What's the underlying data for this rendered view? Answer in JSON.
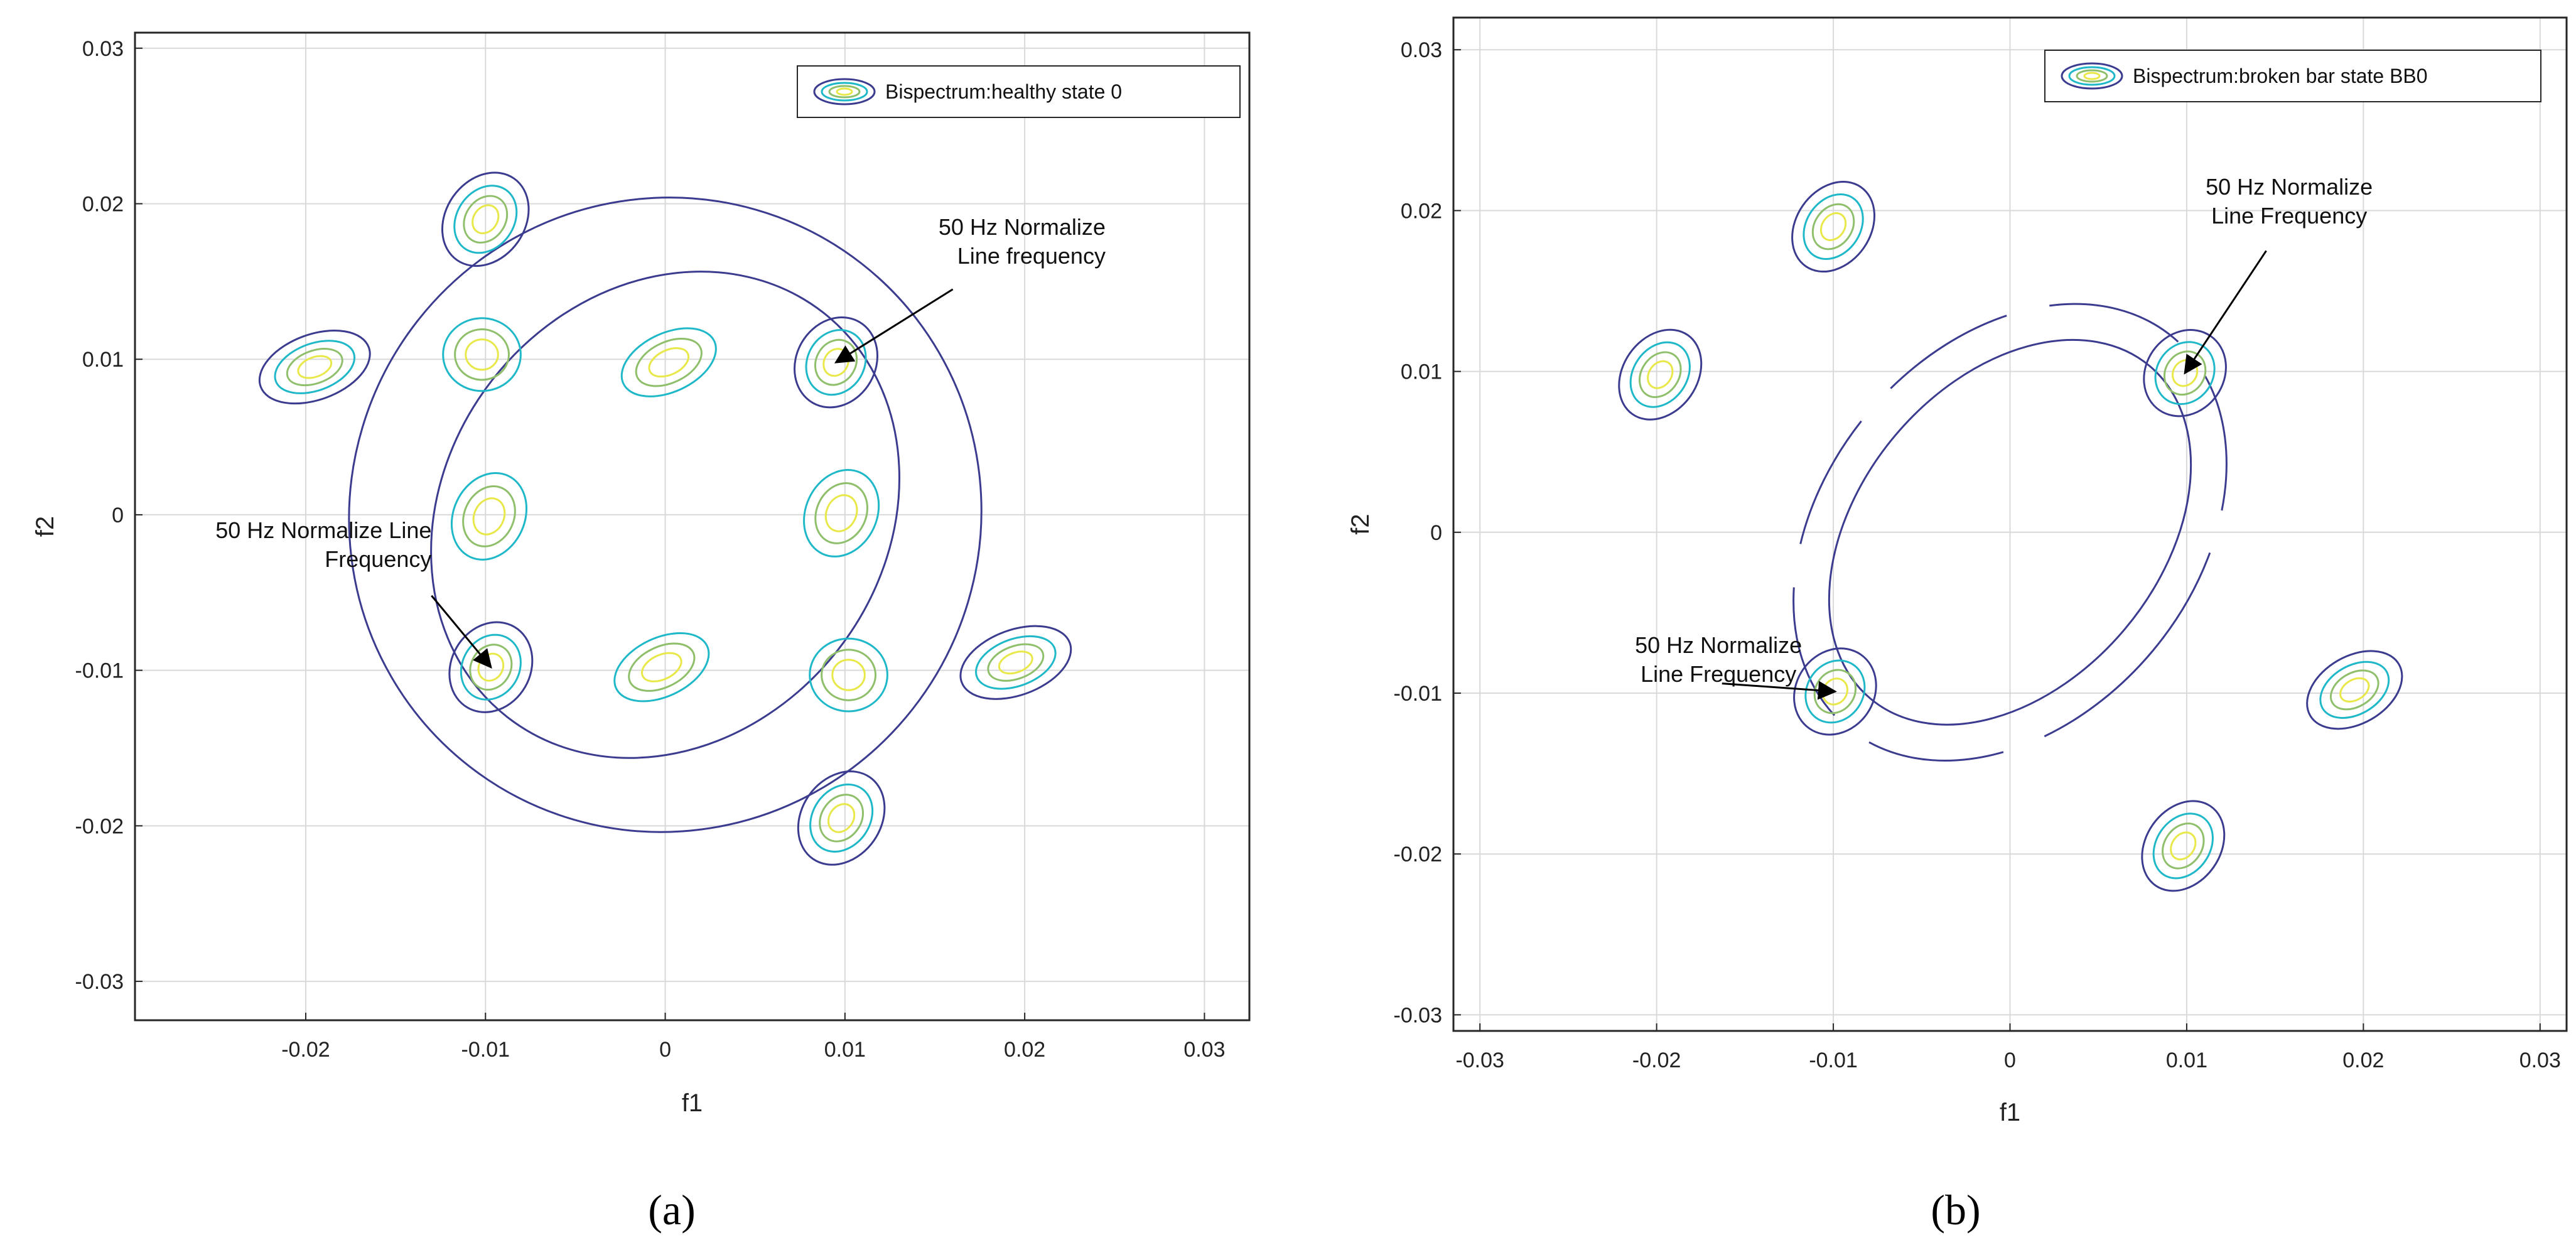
{
  "chart_data": [
    {
      "id": "a",
      "type": "contour",
      "panel_label": "(a)",
      "legend": "Bispectrum:healthy state 0",
      "xlabel": "f1",
      "ylabel": "f2",
      "xlim": [
        -0.0295,
        0.0325
      ],
      "ylim": [
        -0.0325,
        0.031
      ],
      "xticks": [
        -0.02,
        -0.01,
        0,
        0.01,
        0.02,
        0.03
      ],
      "xtick_labels": [
        "-0.02",
        "-0.01",
        "0",
        "0.01",
        "0.02",
        "0.03"
      ],
      "yticks": [
        -0.03,
        -0.02,
        -0.01,
        0,
        0.01,
        0.02,
        0.03
      ],
      "ytick_labels": [
        "-0.03",
        "-0.02",
        "-0.01",
        "0",
        "0.01",
        "0.02",
        "0.03"
      ],
      "contour_colors": [
        "#3b3b8f",
        "#1fb8c9",
        "#8fbf6a",
        "#e8e84a"
      ],
      "peaks": [
        {
          "f1": -0.01,
          "f2": 0.019,
          "rx": 0.0022,
          "ry": 0.0032,
          "rot": 35
        },
        {
          "f1": -0.0195,
          "f2": 0.0095,
          "rx": 0.0032,
          "ry": 0.0021,
          "rot": -20
        },
        {
          "f1": 0.0095,
          "f2": 0.0098,
          "rx": 0.0022,
          "ry": 0.003,
          "rot": 30
        },
        {
          "f1": -0.0097,
          "f2": -0.0098,
          "rx": 0.0022,
          "ry": 0.003,
          "rot": 30
        },
        {
          "f1": 0.0195,
          "f2": -0.0095,
          "rx": 0.0032,
          "ry": 0.0021,
          "rot": -20
        },
        {
          "f1": 0.0098,
          "f2": -0.0195,
          "rx": 0.0022,
          "ry": 0.0032,
          "rot": 35
        }
      ],
      "secondary": [
        {
          "f1": -0.0102,
          "f2": 0.0103,
          "rx": 0.0024,
          "ry": 0.0026,
          "rot": 0
        },
        {
          "f1": 0.0002,
          "f2": 0.0098,
          "rx": 0.0031,
          "ry": 0.0021,
          "rot": -25
        },
        {
          "f1": -0.0098,
          "f2": -0.0001,
          "rx": 0.0022,
          "ry": 0.0032,
          "rot": 25
        },
        {
          "f1": 0.0098,
          "f2": 0.0001,
          "rx": 0.0022,
          "ry": 0.0032,
          "rot": 25
        },
        {
          "f1": -0.0002,
          "f2": -0.0098,
          "rx": 0.0031,
          "ry": 0.0021,
          "rot": -25
        },
        {
          "f1": 0.0102,
          "f2": -0.0103,
          "rx": 0.0024,
          "ry": 0.0026,
          "rot": 0
        }
      ],
      "annotations": [
        {
          "lines": [
            "50 Hz  Normalize",
            "Line frequency"
          ],
          "f1": 0.0245,
          "f2": 0.018,
          "anchor": "end",
          "target": [
            0.0095,
            0.0098
          ],
          "from": [
            0.016,
            0.0145
          ]
        },
        {
          "lines": [
            "50 Hz Normalize Line",
            "Frequency"
          ],
          "f1": -0.013,
          "f2": -0.0015,
          "anchor": "end",
          "target": [
            -0.0097,
            -0.0098
          ],
          "from": [
            -0.013,
            -0.0052
          ]
        }
      ]
    },
    {
      "id": "b",
      "type": "contour",
      "panel_label": "(b)",
      "legend": "Bispectrum:broken bar state BB0",
      "xlabel": "f1",
      "ylabel": "f2",
      "xlim": [
        -0.0315,
        0.0315
      ],
      "ylim": [
        -0.031,
        0.032
      ],
      "xticks": [
        -0.03,
        -0.02,
        -0.01,
        0,
        0.01,
        0.02,
        0.03
      ],
      "xtick_labels": [
        "-0.03",
        "-0.02",
        "-0.01",
        "0",
        "0.01",
        "0.02",
        "0.03"
      ],
      "yticks": [
        -0.03,
        -0.02,
        -0.01,
        0,
        0.01,
        0.02,
        0.03
      ],
      "ytick_labels": [
        "-0.03",
        "-0.02",
        "-0.01",
        "0",
        "0.01",
        "0.02",
        "0.03"
      ],
      "contour_colors": [
        "#3b3b8f",
        "#1fb8c9",
        "#8fbf6a",
        "#e8e84a"
      ],
      "peaks": [
        {
          "f1": -0.01,
          "f2": 0.019,
          "rx": 0.0021,
          "ry": 0.003,
          "rot": 35
        },
        {
          "f1": -0.0198,
          "f2": 0.0098,
          "rx": 0.0021,
          "ry": 0.003,
          "rot": 35
        },
        {
          "f1": 0.0099,
          "f2": 0.0099,
          "rx": 0.0022,
          "ry": 0.0028,
          "rot": 35
        },
        {
          "f1": -0.0099,
          "f2": -0.0099,
          "rx": 0.0022,
          "ry": 0.0028,
          "rot": 35
        },
        {
          "f1": 0.0195,
          "f2": -0.0098,
          "rx": 0.0029,
          "ry": 0.0021,
          "rot": -30
        },
        {
          "f1": 0.0098,
          "f2": -0.0195,
          "rx": 0.0021,
          "ry": 0.003,
          "rot": 35
        }
      ],
      "annotations": [
        {
          "lines": [
            "50 Hz Normalize",
            "Line Frequency"
          ],
          "f1": 0.0158,
          "f2": 0.021,
          "anchor": "middle",
          "target": [
            0.0099,
            0.0099
          ],
          "from": [
            0.0145,
            0.0175
          ]
        },
        {
          "lines": [
            "50 Hz Normalize",
            "Line Frequency"
          ],
          "f1": -0.0165,
          "f2": -0.0075,
          "anchor": "middle",
          "target": [
            -0.0099,
            -0.0099
          ],
          "from": [
            -0.0163,
            -0.0094
          ]
        }
      ]
    }
  ]
}
